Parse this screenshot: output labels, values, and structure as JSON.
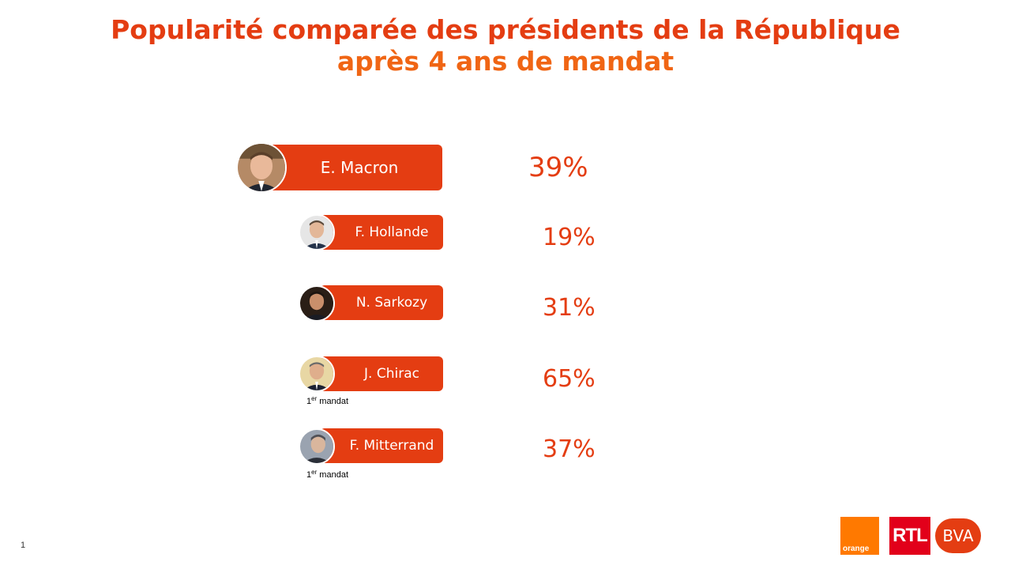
{
  "title": {
    "line1": "Popularité comparée des présidents de la République",
    "line2": "après 4 ans de mandat"
  },
  "presidents": [
    {
      "name": "E. Macron",
      "value": "39%"
    },
    {
      "name": "F. Hollande",
      "value": "19%"
    },
    {
      "name": "N. Sarkozy",
      "value": "31%"
    },
    {
      "name": "J. Chirac",
      "value": "65%",
      "note_prefix": "1",
      "note_sup": "er",
      "note_suffix": " mandat"
    },
    {
      "name": "F. Mitterrand",
      "value": "37%",
      "note_prefix": "1",
      "note_sup": "er",
      "note_suffix": " mandat"
    }
  ],
  "footer": {
    "page_number": "1",
    "logo_orange": "orange",
    "logo_rtl": "RTL",
    "logo_bva": "BVA"
  },
  "colors": {
    "accent": "#e43d12",
    "title_line2": "#f06514",
    "orange_brand": "#ff7900",
    "rtl_red": "#e2001a"
  }
}
